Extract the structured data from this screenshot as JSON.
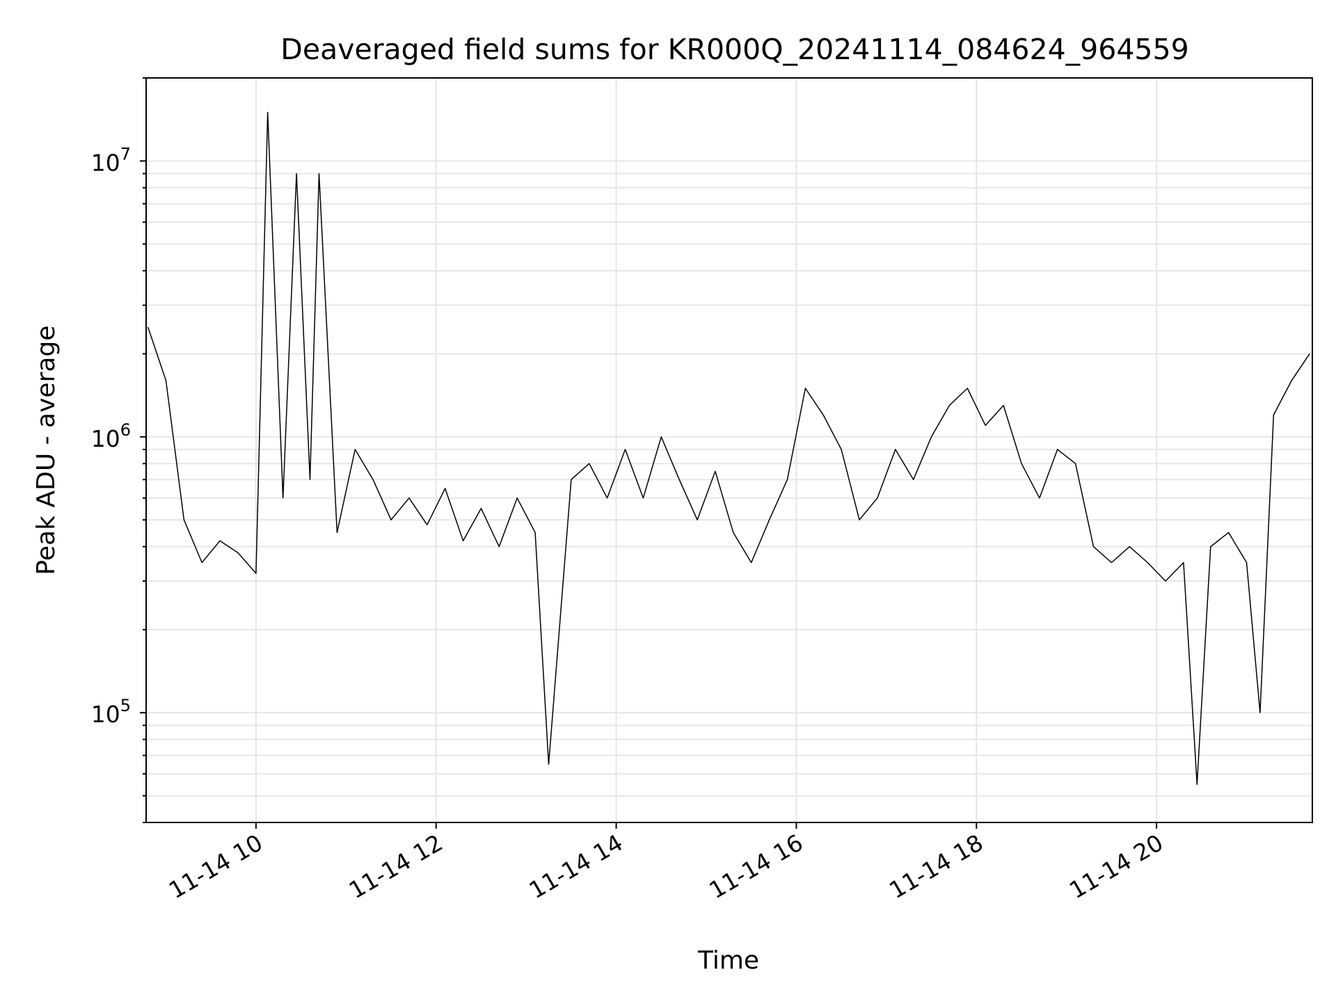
{
  "chart_data": {
    "type": "line",
    "title": "Deaveraged field sums for KR000Q_20241114_084624_964559",
    "xlabel": "Time",
    "ylabel": "Peak ADU - average",
    "yscale": "log",
    "ylim": [
      40000,
      20000000
    ],
    "xlim_hours": [
      8.78,
      21.73
    ],
    "grid": true,
    "legend": "none",
    "line_color": "#000000",
    "x_ticks": [
      {
        "hour": 10,
        "label": "11-14 10"
      },
      {
        "hour": 12,
        "label": "11-14 12"
      },
      {
        "hour": 14,
        "label": "11-14 14"
      },
      {
        "hour": 16,
        "label": "11-14 16"
      },
      {
        "hour": 18,
        "label": "11-14 18"
      },
      {
        "hour": 20,
        "label": "11-14 20"
      }
    ],
    "y_ticks": [
      {
        "value": 100000,
        "base": "10",
        "exp": "5"
      },
      {
        "value": 1000000,
        "base": "10",
        "exp": "6"
      },
      {
        "value": 10000000,
        "base": "10",
        "exp": "7"
      }
    ],
    "series": [
      {
        "x_hours": [
          8.8,
          9.0,
          9.2,
          9.4,
          9.6,
          9.8,
          10.0,
          10.13,
          10.3,
          10.45,
          10.6,
          10.7,
          10.9,
          11.1,
          11.3,
          11.5,
          11.7,
          11.9,
          12.1,
          12.3,
          12.5,
          12.7,
          12.9,
          13.1,
          13.25,
          13.5,
          13.7,
          13.9,
          14.1,
          14.3,
          14.5,
          14.7,
          14.9,
          15.1,
          15.3,
          15.5,
          15.7,
          15.9,
          16.1,
          16.3,
          16.5,
          16.7,
          16.9,
          17.1,
          17.3,
          17.5,
          17.7,
          17.9,
          18.1,
          18.3,
          18.5,
          18.7,
          18.9,
          19.1,
          19.3,
          19.5,
          19.7,
          19.9,
          20.1,
          20.3,
          20.45,
          20.6,
          20.8,
          21.0,
          21.15,
          21.3,
          21.5,
          21.7
        ],
        "y": [
          2500000,
          1600000,
          500000,
          350000,
          420000,
          380000,
          320000,
          15000000,
          600000,
          9000000,
          700000,
          9000000,
          450000,
          900000,
          700000,
          500000,
          600000,
          480000,
          650000,
          420000,
          550000,
          400000,
          600000,
          450000,
          65000,
          700000,
          800000,
          600000,
          900000,
          600000,
          1000000,
          700000,
          500000,
          750000,
          450000,
          350000,
          500000,
          700000,
          1500000,
          1200000,
          900000,
          500000,
          600000,
          900000,
          700000,
          1000000,
          1300000,
          1500000,
          1100000,
          1300000,
          800000,
          600000,
          900000,
          800000,
          400000,
          350000,
          400000,
          350000,
          300000,
          350000,
          55000,
          400000,
          450000,
          350000,
          100000,
          1200000,
          1600000,
          2000000
        ]
      }
    ]
  }
}
